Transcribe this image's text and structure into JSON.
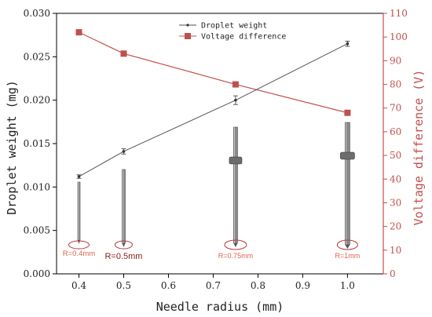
{
  "chart_data": {
    "type": "line",
    "xlabel": "Needle radius (mm)",
    "ylabel_left": "Droplet weight (mg)",
    "ylabel_right": "Voltage difference (V)",
    "xlim": [
      0.35,
      1.08
    ],
    "xticks": [
      "0.4",
      "0.5",
      "0.6",
      "0.7",
      "0.8",
      "0.9",
      "1.0"
    ],
    "ylim_left": [
      0,
      0.03
    ],
    "yticks_left": [
      "0.000",
      "0.005",
      "0.010",
      "0.015",
      "0.020",
      "0.025",
      "0.030"
    ],
    "ylim_right": [
      0,
      110
    ],
    "yticks_right": [
      "0",
      "10",
      "20",
      "30",
      "40",
      "50",
      "60",
      "70",
      "80",
      "90",
      "100",
      "110"
    ],
    "legend_position": "top-center",
    "grid": false,
    "series": [
      {
        "name": "Droplet weight",
        "axis": "left",
        "color": "#555555",
        "marker": "small-dot",
        "x": [
          0.4,
          0.5,
          0.75,
          1.0
        ],
        "y": [
          0.0112,
          0.0141,
          0.02,
          0.0265
        ],
        "error": [
          0.0002,
          0.0003,
          0.0005,
          0.0003
        ]
      },
      {
        "name": "Voltage difference",
        "axis": "right",
        "color": "#c0504d",
        "marker": "square",
        "x": [
          0.4,
          0.5,
          0.75,
          1.0
        ],
        "y": [
          102,
          93,
          80,
          68
        ]
      }
    ],
    "annotations": [
      {
        "x": 0.4,
        "text": "R=0.4mm"
      },
      {
        "x": 0.5,
        "text": "R=0.5mm"
      },
      {
        "x": 0.75,
        "text": "R=0.75mm"
      },
      {
        "x": 1.0,
        "text": "R=1mm"
      }
    ]
  }
}
